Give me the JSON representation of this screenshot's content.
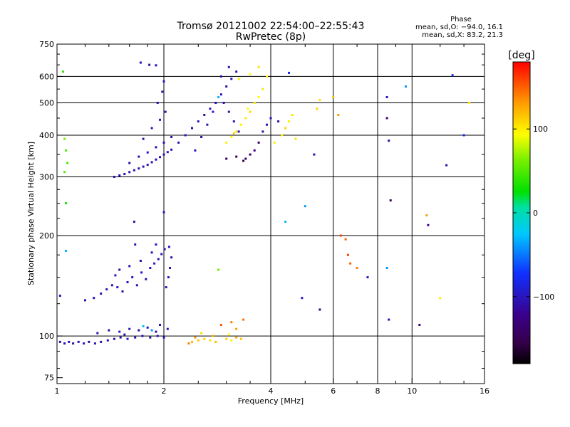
{
  "chart_data": {
    "type": "scatter",
    "title": "Tromsø 20121002 22:54:00–22:55:43",
    "subtitle": "RwPretec (8p)",
    "xlabel": "Frequency [MHz]",
    "ylabel": "Stationary phase Virtual Height [km]",
    "x_scale": "log",
    "y_scale": "log",
    "xlim": [
      1,
      16
    ],
    "ylim": [
      72,
      750
    ],
    "x_ticks": [
      {
        "value": 1,
        "label": "1"
      },
      {
        "value": 2,
        "label": "2"
      },
      {
        "value": 4,
        "label": "4"
      },
      {
        "value": 6,
        "label": "6"
      },
      {
        "value": 8,
        "label": "8"
      },
      {
        "value": 10,
        "label": "10"
      },
      {
        "value": 16,
        "label": "16"
      }
    ],
    "x_grid": [
      2,
      4,
      6,
      8,
      10
    ],
    "y_ticks": [
      {
        "value": 75,
        "label": "75"
      },
      {
        "value": 100,
        "label": "100"
      },
      {
        "value": 200,
        "label": "200"
      },
      {
        "value": 300,
        "label": "300"
      },
      {
        "value": 400,
        "label": "400"
      },
      {
        "value": 500,
        "label": "500"
      },
      {
        "value": 600,
        "label": "600"
      },
      {
        "value": 750,
        "label": "750"
      }
    ],
    "y_grid": [
      100,
      200,
      300,
      400,
      500,
      600
    ],
    "grid": true,
    "stats": {
      "heading": "Phase",
      "line1": "mean, sd,O: −94.0, 16.1",
      "line2": "mean, sd,X: 83.2, 21.3"
    },
    "colorbar": {
      "label": "[deg]",
      "min": -180,
      "max": 180,
      "ticks": [
        {
          "value": 100,
          "label": "100"
        },
        {
          "value": 0,
          "label": "0"
        },
        {
          "value": -100,
          "label": "−100"
        }
      ]
    },
    "series": [
      {
        "points": [
          [
            1.02,
            96,
            -102
          ],
          [
            1.05,
            95,
            -108
          ],
          [
            1.08,
            96,
            -100
          ],
          [
            1.11,
            95,
            -112
          ],
          [
            1.15,
            96,
            -104
          ],
          [
            1.19,
            95,
            -98
          ],
          [
            1.23,
            96,
            -110
          ],
          [
            1.28,
            95,
            -102
          ],
          [
            1.33,
            96,
            -106
          ],
          [
            1.39,
            97,
            -100
          ],
          [
            1.45,
            98,
            -112
          ],
          [
            1.51,
            99,
            -104
          ],
          [
            1.58,
            98,
            -96
          ],
          [
            1.66,
            99,
            -108
          ],
          [
            1.74,
            100,
            -102
          ],
          [
            1.83,
            99,
            -110
          ],
          [
            1.92,
            100,
            -100
          ],
          [
            2.0,
            99,
            -106
          ],
          [
            1.3,
            102,
            -102
          ],
          [
            1.4,
            104,
            -110
          ],
          [
            1.5,
            103,
            -96
          ],
          [
            1.6,
            105,
            -104
          ],
          [
            1.7,
            104,
            -112
          ],
          [
            1.8,
            106,
            -100
          ],
          [
            1.9,
            103,
            -108
          ],
          [
            2.05,
            105,
            -102
          ],
          [
            1.75,
            107,
            -30
          ],
          [
            1.85,
            104,
            -40
          ],
          [
            1.95,
            108,
            -102
          ],
          [
            1.55,
            101,
            -106
          ]
        ]
      },
      {
        "points": [
          [
            1.02,
            132,
            -100
          ],
          [
            1.2,
            128,
            -108
          ],
          [
            1.27,
            130,
            -104
          ],
          [
            1.33,
            134,
            -112
          ],
          [
            1.38,
            138,
            -100
          ],
          [
            1.43,
            142,
            -106
          ],
          [
            1.48,
            140,
            -98
          ],
          [
            1.53,
            136,
            -110
          ],
          [
            1.58,
            145,
            -102
          ],
          [
            1.63,
            150,
            -104
          ],
          [
            1.68,
            142,
            -108
          ],
          [
            1.73,
            155,
            -100
          ],
          [
            1.78,
            148,
            -112
          ],
          [
            1.83,
            160,
            -104
          ],
          [
            1.88,
            165,
            -98
          ],
          [
            1.93,
            170,
            -106
          ],
          [
            1.97,
            176,
            -102
          ],
          [
            2.01,
            182,
            -110
          ],
          [
            2.06,
            150,
            -104
          ],
          [
            2.08,
            160,
            -100
          ],
          [
            2.1,
            172,
            -108
          ],
          [
            2.07,
            185,
            -102
          ],
          [
            1.46,
            152,
            -106
          ],
          [
            1.6,
            162,
            -100
          ],
          [
            1.72,
            168,
            -110
          ],
          [
            1.85,
            178,
            -104
          ],
          [
            1.9,
            188,
            -100
          ],
          [
            1.66,
            188,
            -108
          ],
          [
            2.03,
            140,
            -102
          ],
          [
            1.5,
            158,
            -112
          ]
        ]
      },
      {
        "points": [
          [
            1.45,
            300,
            -104
          ],
          [
            1.5,
            303,
            -110
          ],
          [
            1.55,
            306,
            -100
          ],
          [
            1.6,
            310,
            -108
          ],
          [
            1.65,
            314,
            -102
          ],
          [
            1.7,
            318,
            -112
          ],
          [
            1.75,
            322,
            -106
          ],
          [
            1.8,
            326,
            -100
          ],
          [
            1.85,
            332,
            -104
          ],
          [
            1.9,
            338,
            -110
          ],
          [
            1.95,
            344,
            -102
          ],
          [
            2.0,
            350,
            -108
          ],
          [
            2.05,
            356,
            -100
          ],
          [
            2.1,
            362,
            -104
          ],
          [
            1.6,
            330,
            -112
          ],
          [
            1.7,
            345,
            -106
          ],
          [
            1.8,
            355,
            -100
          ],
          [
            1.9,
            368,
            -108
          ],
          [
            2.0,
            380,
            -102
          ],
          [
            2.1,
            395,
            -104
          ],
          [
            1.75,
            390,
            -110
          ],
          [
            1.85,
            420,
            -100
          ],
          [
            1.95,
            445,
            -106
          ],
          [
            2.02,
            470,
            -104
          ],
          [
            1.92,
            500,
            -102
          ],
          [
            1.98,
            540,
            -108
          ],
          [
            2.0,
            580,
            -100
          ],
          [
            1.82,
            650,
            -112
          ],
          [
            1.9,
            648,
            -106
          ],
          [
            1.72,
            660,
            -104
          ]
        ]
      },
      {
        "points": [
          [
            2.2,
            380,
            -104
          ],
          [
            2.3,
            400,
            -100
          ],
          [
            2.4,
            420,
            -110
          ],
          [
            2.5,
            440,
            -102
          ],
          [
            2.6,
            460,
            -108
          ],
          [
            2.7,
            480,
            -96
          ],
          [
            2.8,
            500,
            -104
          ],
          [
            2.9,
            530,
            -100
          ],
          [
            3.0,
            560,
            -110
          ],
          [
            3.1,
            590,
            -102
          ],
          [
            3.2,
            620,
            -106
          ],
          [
            2.45,
            360,
            -100
          ],
          [
            2.55,
            395,
            -112
          ],
          [
            2.65,
            430,
            -104
          ],
          [
            2.75,
            470,
            -98
          ],
          [
            2.85,
            520,
            -30
          ],
          [
            2.95,
            500,
            -104
          ],
          [
            3.05,
            470,
            -110
          ],
          [
            3.15,
            440,
            -100
          ],
          [
            3.25,
            410,
            -106
          ],
          [
            2.9,
            600,
            -110
          ],
          [
            3.05,
            640,
            -102
          ],
          [
            3.0,
            340,
            -140
          ],
          [
            3.2,
            345,
            -150
          ],
          [
            3.4,
            340,
            -145
          ],
          [
            3.5,
            350,
            -135
          ],
          [
            3.35,
            335,
            -150
          ],
          [
            3.6,
            360,
            -130
          ],
          [
            3.7,
            380,
            -140
          ],
          [
            3.8,
            410,
            -110
          ],
          [
            3.9,
            430,
            -104
          ],
          [
            4.0,
            450,
            -100
          ],
          [
            4.2,
            440,
            -108
          ]
        ]
      },
      {
        "points": [
          [
            3.0,
            380,
            100
          ],
          [
            3.1,
            395,
            95
          ],
          [
            3.2,
            410,
            105
          ],
          [
            3.3,
            430,
            98
          ],
          [
            3.4,
            450,
            102
          ],
          [
            3.5,
            470,
            108
          ],
          [
            3.6,
            500,
            100
          ],
          [
            3.7,
            520,
            95
          ],
          [
            3.8,
            550,
            104
          ],
          [
            3.9,
            600,
            98
          ],
          [
            3.25,
            590,
            102
          ],
          [
            3.5,
            610,
            96
          ],
          [
            3.7,
            640,
            104
          ],
          [
            4.3,
            400,
            100
          ],
          [
            4.4,
            420,
            108
          ],
          [
            4.5,
            440,
            98
          ],
          [
            4.6,
            460,
            102
          ],
          [
            4.7,
            390,
            106
          ],
          [
            5.4,
            480,
            110
          ],
          [
            5.5,
            510,
            104
          ],
          [
            6.0,
            520,
            120
          ],
          [
            6.2,
            460,
            130
          ],
          [
            3.15,
            405,
            112
          ],
          [
            3.45,
            480,
            94
          ],
          [
            4.1,
            380,
            100
          ]
        ]
      },
      {
        "points": [
          [
            2.4,
            96,
            120
          ],
          [
            2.5,
            97,
            115
          ],
          [
            2.6,
            98,
            110
          ],
          [
            2.7,
            97,
            105
          ],
          [
            2.8,
            96,
            118
          ],
          [
            3.0,
            98,
            112
          ],
          [
            3.1,
            97,
            100
          ],
          [
            3.2,
            99,
            125
          ],
          [
            3.3,
            98,
            115
          ],
          [
            2.9,
            108,
            150
          ],
          [
            3.1,
            110,
            140
          ],
          [
            3.2,
            105,
            130
          ],
          [
            2.35,
            95,
            140
          ],
          [
            3.35,
            112,
            145
          ],
          [
            2.55,
            102,
            108
          ],
          [
            3.05,
            101,
            92
          ],
          [
            2.75,
            100,
            122
          ],
          [
            2.45,
            99,
            132
          ]
        ]
      },
      {
        "points": [
          [
            1.05,
            390,
            60
          ],
          [
            1.06,
            360,
            50
          ],
          [
            1.07,
            330,
            45
          ],
          [
            1.05,
            310,
            55
          ],
          [
            1.04,
            620,
            40
          ],
          [
            1.06,
            250,
            30
          ],
          [
            1.06,
            180,
            -30
          ],
          [
            2.85,
            158,
            60
          ],
          [
            6.3,
            200,
            160
          ],
          [
            6.5,
            195,
            150
          ],
          [
            6.6,
            175,
            160
          ],
          [
            6.7,
            165,
            150
          ],
          [
            7.0,
            160,
            140
          ],
          [
            7.5,
            150,
            -100
          ],
          [
            8.5,
            520,
            -100
          ],
          [
            8.5,
            450,
            -130
          ],
          [
            8.6,
            385,
            -110
          ],
          [
            8.7,
            255,
            -140
          ],
          [
            8.5,
            160,
            -40
          ],
          [
            8.6,
            112,
            -100
          ],
          [
            10.5,
            108,
            -120
          ],
          [
            11.0,
            230,
            130
          ],
          [
            11.1,
            215,
            -120
          ],
          [
            12.0,
            130,
            100
          ],
          [
            12.5,
            325,
            -110
          ],
          [
            13.0,
            605,
            -80
          ],
          [
            14.0,
            400,
            -80
          ],
          [
            14.5,
            500,
            100
          ],
          [
            4.5,
            615,
            -80
          ],
          [
            5.0,
            245,
            -40
          ],
          [
            4.4,
            220,
            -30
          ],
          [
            5.5,
            120,
            -120
          ],
          [
            4.9,
            130,
            -100
          ],
          [
            1.65,
            220,
            -110
          ],
          [
            2.0,
            235,
            -104
          ],
          [
            5.3,
            350,
            -104
          ],
          [
            9.6,
            560,
            -40
          ]
        ]
      }
    ]
  }
}
